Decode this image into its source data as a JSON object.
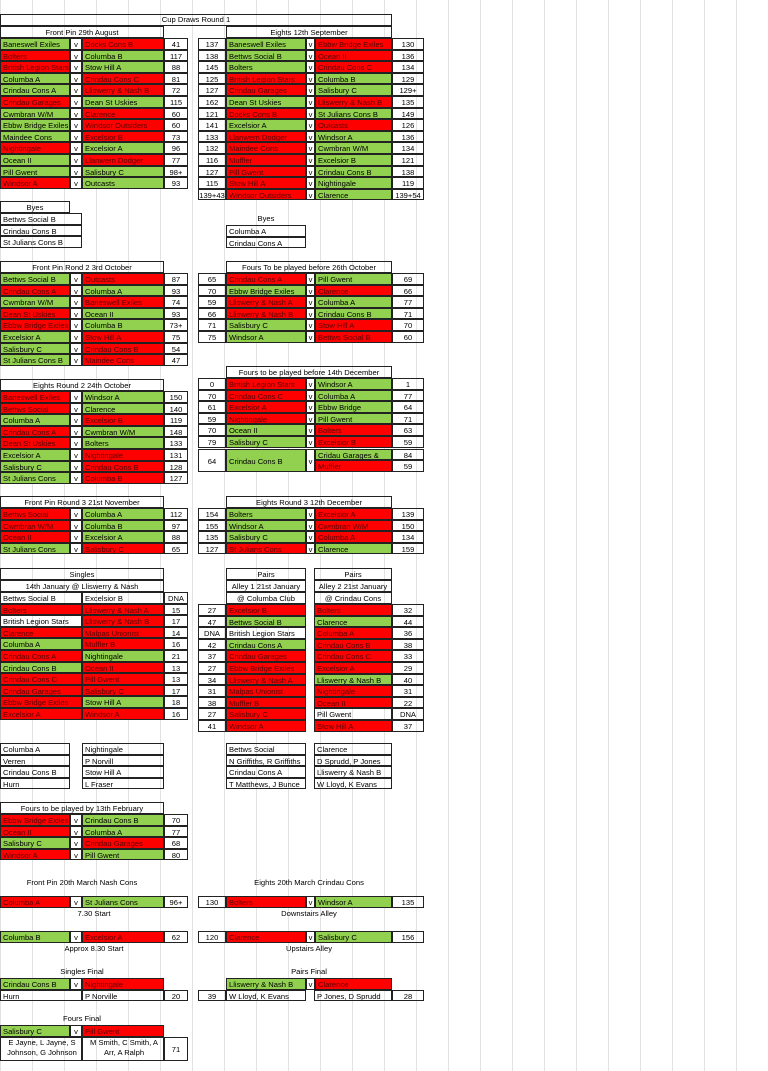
{
  "title": "Cup Draws Round 1",
  "r1": {
    "front_head": "Front Pin  29th August",
    "eights_head": "Eights 12th September",
    "front": [
      [
        "Baneswell Exiles",
        "g",
        "Docks Cons B",
        "r",
        "41"
      ],
      [
        "Bolters",
        "r",
        "Columba B",
        "g",
        "117"
      ],
      [
        "British Legion Stars",
        "r",
        "Stow Hill A",
        "g",
        "88"
      ],
      [
        "Columba A",
        "g",
        "Crindau Cons C",
        "r",
        "81"
      ],
      [
        "Crindau Cons A",
        "g",
        "Lliswerry & Nash B",
        "r",
        "72"
      ],
      [
        "Crindau Garages",
        "r",
        "Dean St Uskies",
        "g",
        "115"
      ],
      [
        "Cwmbran W/M",
        "g",
        "Clarence",
        "r",
        "60"
      ],
      [
        "Ebbw Bridge Exiles",
        "g",
        "Windsor Outsiders",
        "r",
        "60"
      ],
      [
        "Maindee Cons",
        "g",
        "Excelsior B",
        "r",
        "73"
      ],
      [
        "Nightingale",
        "r",
        "Excelsior A",
        "g",
        "96"
      ],
      [
        "Ocean II",
        "g",
        "Llanwern Dodger",
        "r",
        "77"
      ],
      [
        "Pill Gwent",
        "g",
        "Salisbury C",
        "g",
        "98+"
      ],
      [
        "Windsor A",
        "r",
        "Outcasts",
        "g",
        "93"
      ]
    ],
    "eights": [
      [
        "137",
        "Baneswell Exiles",
        "g",
        "Ebbw Bridge Exiles",
        "r",
        "130"
      ],
      [
        "138",
        "Bettws Social B",
        "g",
        "Ocean II",
        "r",
        "136"
      ],
      [
        "145",
        "Bolters",
        "g",
        "Crindau Cons C",
        "r",
        "134"
      ],
      [
        "125",
        "British Legion Stars",
        "r",
        "Columba B",
        "g",
        "129"
      ],
      [
        "127",
        "Crindau Garages",
        "r",
        "Salisbury C",
        "g",
        "129+"
      ],
      [
        "162",
        "Dean St Uskies",
        "g",
        "Lliswerry & Nash B",
        "r",
        "135"
      ],
      [
        "121",
        "Docks Cons B",
        "r",
        "St Julians Cons B",
        "g",
        "149"
      ],
      [
        "141",
        "Excelsior A",
        "g",
        "Outcasts",
        "r",
        "126"
      ],
      [
        "133",
        "Llanwern Dodger",
        "r",
        "Windsor A",
        "g",
        "136"
      ],
      [
        "132",
        "Maindee Cons",
        "r",
        "Cwmbran W/M",
        "g",
        "134"
      ],
      [
        "116",
        "Muffler",
        "r",
        "Excelsior B",
        "g",
        "121"
      ],
      [
        "127",
        "Pill Gwent",
        "r",
        "Crindau Cons B",
        "g",
        "138"
      ],
      [
        "115",
        "Stow Hill A",
        "r",
        "Nightingale",
        "g",
        "119"
      ],
      [
        "139+43",
        "Windsor Outsiders",
        "r",
        "Clarence",
        "g",
        "139+54"
      ]
    ],
    "byes_head": "Byes",
    "byes_left": [
      "Bettws Social B",
      "Crindau Cons B",
      "St Julians Cons B"
    ],
    "byes_right": [
      "Columba A",
      "Crindau Cons A"
    ]
  },
  "r2": {
    "front_head": "Front Pin Rond 2  3rd October",
    "fours_head": "Fours To be played before 26th October",
    "front": [
      [
        "Bettws Social B",
        "g",
        "Outcasts",
        "r",
        "87"
      ],
      [
        "Crindau Cons A",
        "r",
        "Columba A",
        "g",
        "93"
      ],
      [
        "Cwmbran W/M",
        "g",
        "Baneswell Exiles",
        "r",
        "74"
      ],
      [
        "Dean St Uskies",
        "r",
        "Ocean II",
        "g",
        "93"
      ],
      [
        "Ebbw Bridge Exiles",
        "r",
        "Columba B",
        "g",
        "73+"
      ],
      [
        "Excelsior A",
        "g",
        "Stow Hill A",
        "r",
        "75"
      ],
      [
        "Salisbury C",
        "g",
        "Crindau Cons B",
        "r",
        "54"
      ],
      [
        "St Julians Cons B",
        "g",
        "Maindee Cons",
        "r",
        "47"
      ]
    ],
    "fours": [
      [
        "65",
        "Crindau Cons A",
        "r",
        "Pill Gwent",
        "g",
        "69"
      ],
      [
        "70",
        "Ebbw Bridge Exiles",
        "g",
        "Clarence",
        "r",
        "66"
      ],
      [
        "59",
        "Lliswerry & Nash A",
        "r",
        "Columba A",
        "g",
        "77"
      ],
      [
        "66",
        "Lliswerry & Nash B",
        "r",
        "Crindau Cons B",
        "g",
        "71"
      ],
      [
        "71",
        "Salisbury C",
        "g",
        "Stow Hill A",
        "r",
        "70"
      ],
      [
        "75",
        "Windsor A",
        "g",
        "Bettws Social B",
        "r",
        "60"
      ]
    ]
  },
  "r3": {
    "eights_head": "Eights Round 2 24th October",
    "fours_head": "Fours to be played before 14th December",
    "eights": [
      [
        "Baneswell Exiles",
        "r",
        "Windsor A",
        "g",
        "150"
      ],
      [
        "Bettws Social",
        "r",
        "Clarence",
        "g",
        "140"
      ],
      [
        "Columba A",
        "g",
        "Excelsior B",
        "r",
        "119"
      ],
      [
        "Crindau Cons A",
        "r",
        "Cwmbran W/M",
        "g",
        "148"
      ],
      [
        "Dean St Uskies",
        "r",
        "Bolters",
        "g",
        "133"
      ],
      [
        "Excelsior A",
        "g",
        "Nightingale",
        "r",
        "131"
      ],
      [
        "Salisbury C",
        "g",
        "Crindau Cons B",
        "r",
        "128"
      ],
      [
        "St Julians Cons",
        "g",
        "Columba B",
        "r",
        "127"
      ]
    ],
    "fours": [
      [
        "0",
        "British Legion Stars",
        "r",
        "Windsor A",
        "g",
        "1"
      ],
      [
        "70",
        "Crindau Cons C",
        "r",
        "Columba A",
        "g",
        "77"
      ],
      [
        "61",
        "Excelsior A",
        "r",
        "Ebbw Bridge",
        "g",
        "64"
      ],
      [
        "59",
        "Nightingale",
        "r",
        "Pill Gwent",
        "g",
        "71"
      ],
      [
        "70",
        "Ocean II",
        "g",
        "Bolters",
        "r",
        "63"
      ],
      [
        "79",
        "Salisbury C",
        "g",
        "Excelsior B",
        "r",
        "59"
      ]
    ],
    "fours_last": {
      "score": "64",
      "home": "Crindau Cons B",
      "away1": "Cridau Garages &",
      "s1": "84",
      "away2": "Muffler",
      "s2": "59"
    }
  },
  "r4": {
    "front_head": "Front Pin Round 3 21st November",
    "eights_head": "Eights Round 3 12th December",
    "front": [
      [
        "Bettws Social",
        "r",
        "Columba A",
        "g",
        "112"
      ],
      [
        "Cwmbran W/M",
        "r",
        "Columba B",
        "g",
        "97"
      ],
      [
        "Ocean II",
        "r",
        "Excelsior A",
        "g",
        "88"
      ],
      [
        "St Julians Cons",
        "g",
        "Salisbury C",
        "r",
        "65"
      ]
    ],
    "eights": [
      [
        "154",
        "Bolters",
        "g",
        "Excelsior A",
        "r",
        "139"
      ],
      [
        "155",
        "Windsor A",
        "g",
        "Cwmbran W/M",
        "r",
        "150"
      ],
      [
        "135",
        "Salisbury C",
        "g",
        "Columba A",
        "r",
        "134"
      ],
      [
        "127",
        "St Julians Cons",
        "r",
        "Clarence",
        "g",
        "159"
      ]
    ]
  },
  "singles": {
    "head": "Singles",
    "sub": "14th January  @ Lliswerry & Nash",
    "rows": [
      [
        "Bettws Social B",
        "n",
        "Excelsior B",
        "n",
        "DNA"
      ],
      [
        "Bolters",
        "r",
        "Lliswerry & Nash A",
        "r",
        "15"
      ],
      [
        "British Legion Stars",
        "n",
        "Lliswerry & Nash B",
        "r",
        "17"
      ],
      [
        "Clarence",
        "r",
        "Malpas Unionist",
        "r",
        "14"
      ],
      [
        "Columba A",
        "g",
        "Muffler B",
        "r",
        "16"
      ],
      [
        "Crindau Cons A",
        "r",
        "Nightingale",
        "g",
        "21"
      ],
      [
        "Crindau Cons B",
        "g",
        "Ocean II",
        "r",
        "13"
      ],
      [
        "Crindau Cons C",
        "r",
        "Pill Gwent",
        "r",
        "13"
      ],
      [
        "Crindau Garages",
        "r",
        "Salisbury C",
        "r",
        "17"
      ],
      [
        "Ebbw Bridge Exiles",
        "r",
        "Stow Hill A",
        "g",
        "18"
      ],
      [
        "Excelsior A",
        "r",
        "Windsor A",
        "r",
        "16"
      ]
    ]
  },
  "pairs": {
    "head": "Pairs",
    "alley1": "Alley 1 21st January",
    "alley1_venue": "@ Columba Club",
    "alley2": "Alley 2 21st January",
    "alley2_venue": "@ Crindau Cons",
    "rows": [
      [
        "27",
        "Excelsior B",
        "r",
        "Bolters",
        "r",
        "32"
      ],
      [
        "47",
        "Bettws Social B",
        "g",
        "Clarence",
        "g",
        "44"
      ],
      [
        "DNA",
        "British Legion Stars",
        "n",
        "Columba A",
        "r",
        "36"
      ],
      [
        "42",
        "Crindau Cons A",
        "g",
        "Crindau Cons B",
        "r",
        "38"
      ],
      [
        "37",
        "Crindau Garages",
        "r",
        "Crindau Cons C",
        "r",
        "33"
      ],
      [
        "27",
        "Ebbw Bridge Exiles",
        "r",
        "Excelsior A",
        "r",
        "29"
      ],
      [
        "34",
        "Lliswerry & Nash A",
        "r",
        "Lliswerry & Nash B",
        "g",
        "40"
      ],
      [
        "31",
        "Malpas Unionist",
        "r",
        "Nightingale",
        "r",
        "31"
      ],
      [
        "38",
        "Muffler B",
        "r",
        "Ocean II",
        "r",
        "22"
      ],
      [
        "27",
        "Salisbury C",
        "r",
        "Pill Gwent",
        "n",
        "DNA"
      ],
      [
        "41",
        "Windsor A",
        "r",
        "Stow Hill A",
        "r",
        "37"
      ]
    ]
  },
  "results": {
    "sl": [
      "Columba A",
      "Verren",
      "Crindau Cons B",
      "Hurn"
    ],
    "sr": [
      "Nightingale",
      "P Norvill",
      "Stow Hill A",
      "L Fraser"
    ],
    "pl": [
      "Bettws Social",
      "N Griffiths, R Griffiths",
      "Crindau Cons A",
      "T Matthews, J Bunce"
    ],
    "pr": [
      "Clarence",
      "D Sprudd, P Jones",
      "Lliswerry & Nash B",
      "W Lloyd, K Evans"
    ]
  },
  "fours_feb": {
    "head": "Fours to be played by 13th February",
    "rows": [
      [
        "Ebbw Bridge Exiles",
        "r",
        "Crindau Cons B",
        "g",
        "70"
      ],
      [
        "Ocean II",
        "r",
        "Columba A",
        "g",
        "77"
      ],
      [
        "Salisbury C",
        "g",
        "Crindau Garages",
        "r",
        "68"
      ],
      [
        "Windsor A",
        "r",
        "Pill Gwent",
        "g",
        "80"
      ]
    ]
  },
  "semis": {
    "front_head": "Front Pin 20th March  Nash Cons",
    "eights_head": "Eights 20th March  Crindau Cons",
    "f1": [
      "Columba A",
      "r",
      "St Julians Cons",
      "g",
      "96+"
    ],
    "f1_note": "7.30 Start",
    "f2": [
      "Columba B",
      "g",
      "Excelsior A",
      "r",
      "62"
    ],
    "f2_note": "Approx 8.30 Start",
    "e1": [
      "130",
      "Bolters",
      "r",
      "Windsor A",
      "g",
      "135"
    ],
    "e1_note": "Downstairs Alley",
    "e2": [
      "120",
      "Clarence",
      "r",
      "Salisbury C",
      "g",
      "156"
    ],
    "e2_note": "Upstairs Alley"
  },
  "finals": {
    "singles_head": "Singles Final",
    "singles": [
      "Crindau Cons B",
      "g",
      "Nightingale",
      "r"
    ],
    "singles_names": [
      "Hurn",
      "P Norville",
      "20"
    ],
    "pairs_head": "Pairs Final",
    "pairs": [
      "Lliswerry & Nash B",
      "g",
      "Clarence",
      "r"
    ],
    "pairs_names": [
      "39",
      "W Lloyd, K Evans",
      "P Jones, D Sprudd",
      "28"
    ],
    "fours_head": "Fours Final",
    "fours": [
      "Salisbury C",
      "g",
      "Pill Gwent",
      "r"
    ],
    "fours_names_left": "E Jayne, L Jayne, S Johnson, G Johnson",
    "fours_names_right": "M Smith, C Smith, A Arr, A Ralph",
    "fours_score": "71"
  },
  "v": "v"
}
